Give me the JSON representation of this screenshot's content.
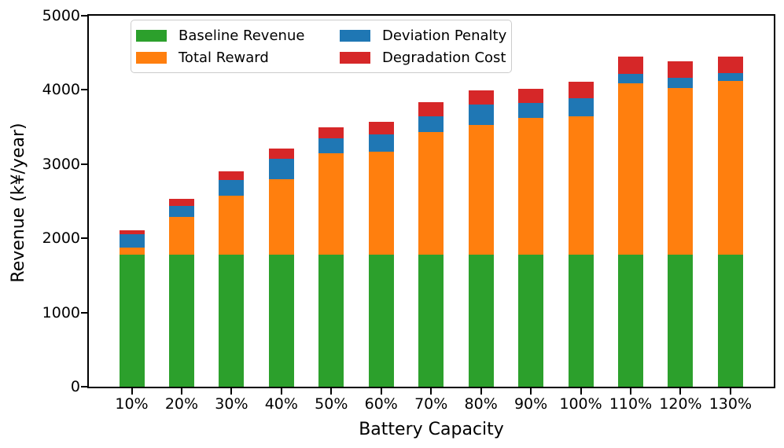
{
  "chart_data": {
    "type": "bar",
    "stacked": true,
    "title": "",
    "xlabel": "Battery Capacity",
    "ylabel": "Revenue (k¥/year)",
    "categories": [
      "10%",
      "20%",
      "30%",
      "40%",
      "50%",
      "60%",
      "70%",
      "80%",
      "90%",
      "100%",
      "110%",
      "120%",
      "130%"
    ],
    "series": [
      {
        "name": "Baseline Revenue",
        "color": "#2ca02c",
        "values": [
          1780,
          1780,
          1780,
          1780,
          1780,
          1780,
          1780,
          1780,
          1780,
          1780,
          1780,
          1780,
          1780
        ]
      },
      {
        "name": "Total Reward",
        "color": "#ff7f0e",
        "values": [
          100,
          510,
          790,
          1020,
          1370,
          1390,
          1655,
          1750,
          1845,
          1865,
          2305,
          2245,
          2340
        ]
      },
      {
        "name": "Deviation Penalty",
        "color": "#1f77b4",
        "values": [
          175,
          150,
          220,
          275,
          195,
          235,
          210,
          275,
          200,
          245,
          130,
          140,
          105
        ]
      },
      {
        "name": "Degradation Cost",
        "color": "#d62728",
        "values": [
          55,
          90,
          110,
          130,
          150,
          170,
          185,
          185,
          195,
          220,
          235,
          225,
          220
        ]
      }
    ],
    "bar_totals": [
      2110,
      2530,
      2900,
      3205,
      3495,
      3575,
      3830,
      3990,
      4020,
      4110,
      4450,
      4390,
      4445
    ],
    "ylim": [
      0,
      5000
    ],
    "yticks": [
      0,
      1000,
      2000,
      3000,
      4000,
      5000
    ],
    "grid": false,
    "legend": {
      "location": "upper left",
      "columns": 2,
      "entries": [
        "Baseline Revenue",
        "Total Reward",
        "Deviation Penalty",
        "Degradation Cost"
      ]
    }
  }
}
